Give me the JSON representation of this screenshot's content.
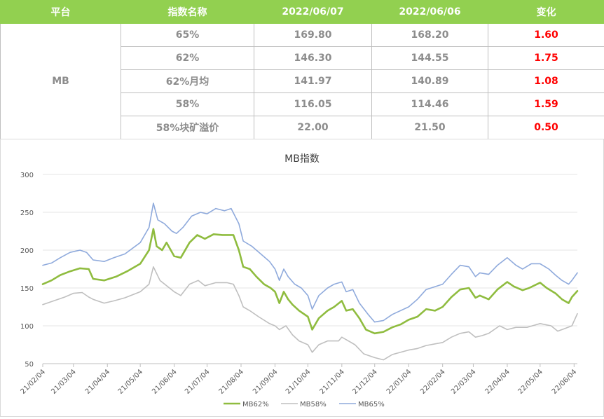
{
  "table": {
    "headers": [
      "平台",
      "指数名称",
      "2022/06/07",
      "2022/06/06",
      "变化"
    ],
    "platform": "MB",
    "rows": [
      {
        "name": "65%",
        "d1": "169.80",
        "d2": "168.20",
        "chg": "1.60"
      },
      {
        "name": "62%",
        "d1": "146.30",
        "d2": "144.55",
        "chg": "1.75"
      },
      {
        "name": "62%月均",
        "d1": "141.97",
        "d2": "140.89",
        "chg": "1.08"
      },
      {
        "name": "58%",
        "d1": "116.05",
        "d2": "114.46",
        "chg": "1.59"
      },
      {
        "name": "58%块矿溢价",
        "d1": "22.00",
        "d2": "21.50",
        "chg": "0.50"
      }
    ]
  },
  "colors": {
    "header_bg": "#92d050",
    "change_text": "#ff0000",
    "mb62": "#8fbc3f",
    "mb58": "#bfbfbf",
    "mb65": "#8faadc"
  },
  "chart_data": {
    "type": "line",
    "title": "MB指数",
    "xlabel": "",
    "ylabel": "",
    "ylim": [
      50,
      300
    ],
    "yticks": [
      50,
      100,
      150,
      200,
      250,
      300
    ],
    "xlim": [
      "2021-02-04",
      "2022-06-07"
    ],
    "xticks": [
      {
        "date": "2021-02-04",
        "label": "21/02/04"
      },
      {
        "date": "2021-03-04",
        "label": "21/03/04"
      },
      {
        "date": "2021-04-04",
        "label": "21/04/04"
      },
      {
        "date": "2021-05-04",
        "label": "21/05/04"
      },
      {
        "date": "2021-06-04",
        "label": "21/06/04"
      },
      {
        "date": "2021-07-04",
        "label": "21/07/04"
      },
      {
        "date": "2021-08-04",
        "label": "21/08/04"
      },
      {
        "date": "2021-09-04",
        "label": "21/09/04"
      },
      {
        "date": "2021-10-04",
        "label": "21/10/04"
      },
      {
        "date": "2021-11-04",
        "label": "21/11/04"
      },
      {
        "date": "2021-12-04",
        "label": "21/12/04"
      },
      {
        "date": "2022-01-04",
        "label": "22/01/04"
      },
      {
        "date": "2022-02-04",
        "label": "22/02/04"
      },
      {
        "date": "2022-03-04",
        "label": "22/03/04"
      },
      {
        "date": "2022-04-04",
        "label": "22/04/04"
      },
      {
        "date": "2022-05-04",
        "label": "22/05/04"
      },
      {
        "date": "2022-06-04",
        "label": "22/06/04"
      }
    ],
    "grid": true,
    "legend": "bottom",
    "series": [
      {
        "name": "MB62%",
        "color": "#8fbc3f",
        "width": 2.6,
        "points": [
          [
            "2021-02-04",
            155
          ],
          [
            "2021-02-12",
            160
          ],
          [
            "2021-02-20",
            167
          ],
          [
            "2021-03-01",
            172
          ],
          [
            "2021-03-10",
            176
          ],
          [
            "2021-03-18",
            175
          ],
          [
            "2021-03-22",
            162
          ],
          [
            "2021-04-01",
            160
          ],
          [
            "2021-04-12",
            165
          ],
          [
            "2021-04-22",
            172
          ],
          [
            "2021-05-04",
            182
          ],
          [
            "2021-05-12",
            200
          ],
          [
            "2021-05-16",
            228
          ],
          [
            "2021-05-19",
            205
          ],
          [
            "2021-05-24",
            200
          ],
          [
            "2021-05-28",
            210
          ],
          [
            "2021-06-04",
            192
          ],
          [
            "2021-06-10",
            190
          ],
          [
            "2021-06-18",
            210
          ],
          [
            "2021-06-25",
            220
          ],
          [
            "2021-07-02",
            215
          ],
          [
            "2021-07-10",
            221
          ],
          [
            "2021-07-18",
            220
          ],
          [
            "2021-07-28",
            220
          ],
          [
            "2021-08-02",
            200
          ],
          [
            "2021-08-06",
            178
          ],
          [
            "2021-08-12",
            175
          ],
          [
            "2021-08-18",
            165
          ],
          [
            "2021-08-25",
            155
          ],
          [
            "2021-08-31",
            150
          ],
          [
            "2021-09-04",
            145
          ],
          [
            "2021-09-08",
            130
          ],
          [
            "2021-09-12",
            145
          ],
          [
            "2021-09-16",
            135
          ],
          [
            "2021-09-20",
            128
          ],
          [
            "2021-09-26",
            120
          ],
          [
            "2021-10-04",
            112
          ],
          [
            "2021-10-08",
            95
          ],
          [
            "2021-10-14",
            110
          ],
          [
            "2021-10-22",
            120
          ],
          [
            "2021-10-28",
            125
          ],
          [
            "2021-11-04",
            133
          ],
          [
            "2021-11-08",
            120
          ],
          [
            "2021-11-14",
            122
          ],
          [
            "2021-11-20",
            110
          ],
          [
            "2021-11-26",
            95
          ],
          [
            "2021-12-04",
            90
          ],
          [
            "2021-12-12",
            92
          ],
          [
            "2021-12-20",
            98
          ],
          [
            "2021-12-28",
            102
          ],
          [
            "2022-01-04",
            108
          ],
          [
            "2022-01-12",
            112
          ],
          [
            "2022-01-20",
            122
          ],
          [
            "2022-01-28",
            120
          ],
          [
            "2022-02-04",
            125
          ],
          [
            "2022-02-12",
            138
          ],
          [
            "2022-02-20",
            148
          ],
          [
            "2022-02-28",
            150
          ],
          [
            "2022-03-06",
            137
          ],
          [
            "2022-03-10",
            140
          ],
          [
            "2022-03-18",
            135
          ],
          [
            "2022-03-26",
            148
          ],
          [
            "2022-04-04",
            158
          ],
          [
            "2022-04-10",
            152
          ],
          [
            "2022-04-18",
            147
          ],
          [
            "2022-04-24",
            150
          ],
          [
            "2022-05-04",
            157
          ],
          [
            "2022-05-10",
            150
          ],
          [
            "2022-05-18",
            143
          ],
          [
            "2022-05-24",
            135
          ],
          [
            "2022-05-30",
            130
          ],
          [
            "2022-06-02",
            138
          ],
          [
            "2022-06-07",
            146
          ]
        ]
      },
      {
        "name": "MB58%",
        "color": "#bfbfbf",
        "width": 1.6,
        "points": [
          [
            "2021-02-04",
            128
          ],
          [
            "2021-02-14",
            133
          ],
          [
            "2021-02-24",
            138
          ],
          [
            "2021-03-04",
            143
          ],
          [
            "2021-03-12",
            144
          ],
          [
            "2021-03-18",
            138
          ],
          [
            "2021-03-22",
            135
          ],
          [
            "2021-04-01",
            130
          ],
          [
            "2021-04-10",
            133
          ],
          [
            "2021-04-20",
            137
          ],
          [
            "2021-05-04",
            145
          ],
          [
            "2021-05-12",
            155
          ],
          [
            "2021-05-16",
            178
          ],
          [
            "2021-05-22",
            160
          ],
          [
            "2021-06-04",
            145
          ],
          [
            "2021-06-10",
            140
          ],
          [
            "2021-06-18",
            155
          ],
          [
            "2021-06-26",
            160
          ],
          [
            "2021-07-02",
            153
          ],
          [
            "2021-07-12",
            157
          ],
          [
            "2021-07-22",
            157
          ],
          [
            "2021-07-28",
            155
          ],
          [
            "2021-08-02",
            140
          ],
          [
            "2021-08-06",
            125
          ],
          [
            "2021-08-12",
            120
          ],
          [
            "2021-08-20",
            112
          ],
          [
            "2021-08-30",
            103
          ],
          [
            "2021-09-04",
            100
          ],
          [
            "2021-09-08",
            95
          ],
          [
            "2021-09-14",
            100
          ],
          [
            "2021-09-20",
            88
          ],
          [
            "2021-09-26",
            80
          ],
          [
            "2021-10-04",
            75
          ],
          [
            "2021-10-08",
            65
          ],
          [
            "2021-10-14",
            75
          ],
          [
            "2021-10-22",
            80
          ],
          [
            "2021-11-01",
            80
          ],
          [
            "2021-11-04",
            85
          ],
          [
            "2021-11-10",
            80
          ],
          [
            "2021-11-16",
            75
          ],
          [
            "2021-11-24",
            63
          ],
          [
            "2021-12-04",
            58
          ],
          [
            "2021-12-12",
            55
          ],
          [
            "2021-12-20",
            62
          ],
          [
            "2022-01-04",
            68
          ],
          [
            "2022-01-12",
            70
          ],
          [
            "2022-01-20",
            74
          ],
          [
            "2022-02-04",
            78
          ],
          [
            "2022-02-12",
            85
          ],
          [
            "2022-02-20",
            90
          ],
          [
            "2022-02-28",
            92
          ],
          [
            "2022-03-06",
            85
          ],
          [
            "2022-03-12",
            87
          ],
          [
            "2022-03-18",
            90
          ],
          [
            "2022-03-28",
            100
          ],
          [
            "2022-04-04",
            95
          ],
          [
            "2022-04-12",
            98
          ],
          [
            "2022-04-22",
            98
          ],
          [
            "2022-05-04",
            103
          ],
          [
            "2022-05-14",
            100
          ],
          [
            "2022-05-20",
            93
          ],
          [
            "2022-05-26",
            96
          ],
          [
            "2022-06-02",
            100
          ],
          [
            "2022-06-07",
            116
          ]
        ]
      },
      {
        "name": "MB65%",
        "color": "#8faadc",
        "width": 1.6,
        "points": [
          [
            "2021-02-04",
            180
          ],
          [
            "2021-02-12",
            183
          ],
          [
            "2021-02-20",
            190
          ],
          [
            "2021-03-01",
            197
          ],
          [
            "2021-03-10",
            200
          ],
          [
            "2021-03-16",
            197
          ],
          [
            "2021-03-22",
            187
          ],
          [
            "2021-04-01",
            185
          ],
          [
            "2021-04-10",
            190
          ],
          [
            "2021-04-20",
            195
          ],
          [
            "2021-05-04",
            210
          ],
          [
            "2021-05-12",
            230
          ],
          [
            "2021-05-16",
            262
          ],
          [
            "2021-05-20",
            240
          ],
          [
            "2021-05-26",
            235
          ],
          [
            "2021-06-02",
            225
          ],
          [
            "2021-06-06",
            222
          ],
          [
            "2021-06-12",
            230
          ],
          [
            "2021-06-20",
            245
          ],
          [
            "2021-06-28",
            250
          ],
          [
            "2021-07-04",
            248
          ],
          [
            "2021-07-12",
            255
          ],
          [
            "2021-07-20",
            252
          ],
          [
            "2021-07-26",
            255
          ],
          [
            "2021-08-02",
            235
          ],
          [
            "2021-08-06",
            212
          ],
          [
            "2021-08-14",
            205
          ],
          [
            "2021-08-22",
            195
          ],
          [
            "2021-08-30",
            185
          ],
          [
            "2021-09-04",
            175
          ],
          [
            "2021-09-08",
            160
          ],
          [
            "2021-09-12",
            175
          ],
          [
            "2021-09-16",
            165
          ],
          [
            "2021-09-22",
            155
          ],
          [
            "2021-09-28",
            150
          ],
          [
            "2021-10-04",
            140
          ],
          [
            "2021-10-08",
            122
          ],
          [
            "2021-10-14",
            140
          ],
          [
            "2021-10-22",
            150
          ],
          [
            "2021-10-28",
            155
          ],
          [
            "2021-11-04",
            158
          ],
          [
            "2021-11-08",
            145
          ],
          [
            "2021-11-14",
            148
          ],
          [
            "2021-11-20",
            130
          ],
          [
            "2021-11-28",
            115
          ],
          [
            "2021-12-04",
            105
          ],
          [
            "2021-12-12",
            107
          ],
          [
            "2021-12-20",
            115
          ],
          [
            "2022-01-04",
            125
          ],
          [
            "2022-01-12",
            135
          ],
          [
            "2022-01-20",
            148
          ],
          [
            "2022-02-04",
            155
          ],
          [
            "2022-02-12",
            168
          ],
          [
            "2022-02-20",
            180
          ],
          [
            "2022-02-28",
            178
          ],
          [
            "2022-03-06",
            165
          ],
          [
            "2022-03-10",
            170
          ],
          [
            "2022-03-18",
            168
          ],
          [
            "2022-03-26",
            180
          ],
          [
            "2022-04-04",
            190
          ],
          [
            "2022-04-12",
            180
          ],
          [
            "2022-04-18",
            175
          ],
          [
            "2022-04-26",
            182
          ],
          [
            "2022-05-04",
            182
          ],
          [
            "2022-05-12",
            175
          ],
          [
            "2022-05-18",
            167
          ],
          [
            "2022-05-24",
            160
          ],
          [
            "2022-05-30",
            155
          ],
          [
            "2022-06-02",
            160
          ],
          [
            "2022-06-07",
            170
          ]
        ]
      }
    ]
  }
}
